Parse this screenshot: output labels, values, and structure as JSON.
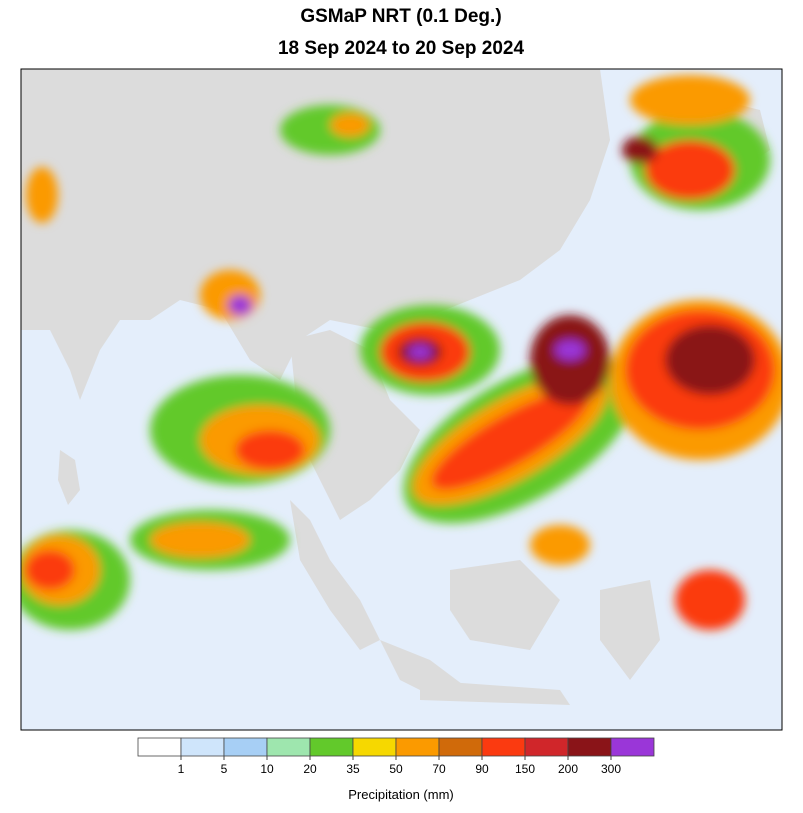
{
  "title": "GSMaP NRT (0.1 Deg.)",
  "subtitle": "18 Sep 2024 to 20 Sep 2024",
  "colorbar": {
    "label": "Precipitation (mm)",
    "levels": [
      1,
      5,
      10,
      20,
      35,
      50,
      70,
      90,
      150,
      200,
      300
    ],
    "colors": [
      "#ffffff",
      "#cfe5fb",
      "#a7cff5",
      "#9ee6ae",
      "#62c92b",
      "#f6d800",
      "#fb9a00",
      "#d06a0a",
      "#fb3a10",
      "#d0262a",
      "#8a1418",
      "#9a36d8"
    ]
  }
}
